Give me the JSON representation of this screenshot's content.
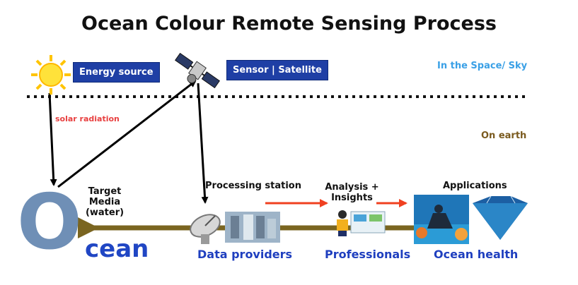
{
  "title": "Ocean Colour Remote Sensing Process",
  "zones": {
    "sky": "In the Space/ Sky",
    "earth": "On earth"
  },
  "top_badges": {
    "energy": "Energy source",
    "sensor": "Sensor | Satellite"
  },
  "arrow_labels": {
    "radiation": "solar radiation"
  },
  "nodes": {
    "target": "Target Media\n(water)",
    "processing": "Processing station",
    "analysis": "Analysis +\nInsights",
    "applications": "Applications"
  },
  "bottom_labels": {
    "ocean_letter": "O",
    "ocean_rest": "cean",
    "data_providers": "Data providers",
    "professionals": "Professionals",
    "ocean_health": "Ocean health"
  },
  "colors": {
    "title": "#111111",
    "badge": "#1f3fa5",
    "sky_text": "#3aa0e6",
    "earth_text": "#7a5a1e",
    "radiation_text": "#e84040",
    "timeline": "#7a6520",
    "red_arrow": "#f04020",
    "blue_text": "#1f3fbf"
  },
  "icons": [
    "sun-icon",
    "satellite-icon",
    "dish-antenna-icon",
    "building-icon",
    "person-at-computer-icon",
    "diver-icon",
    "diamond-ocean-icon"
  ]
}
